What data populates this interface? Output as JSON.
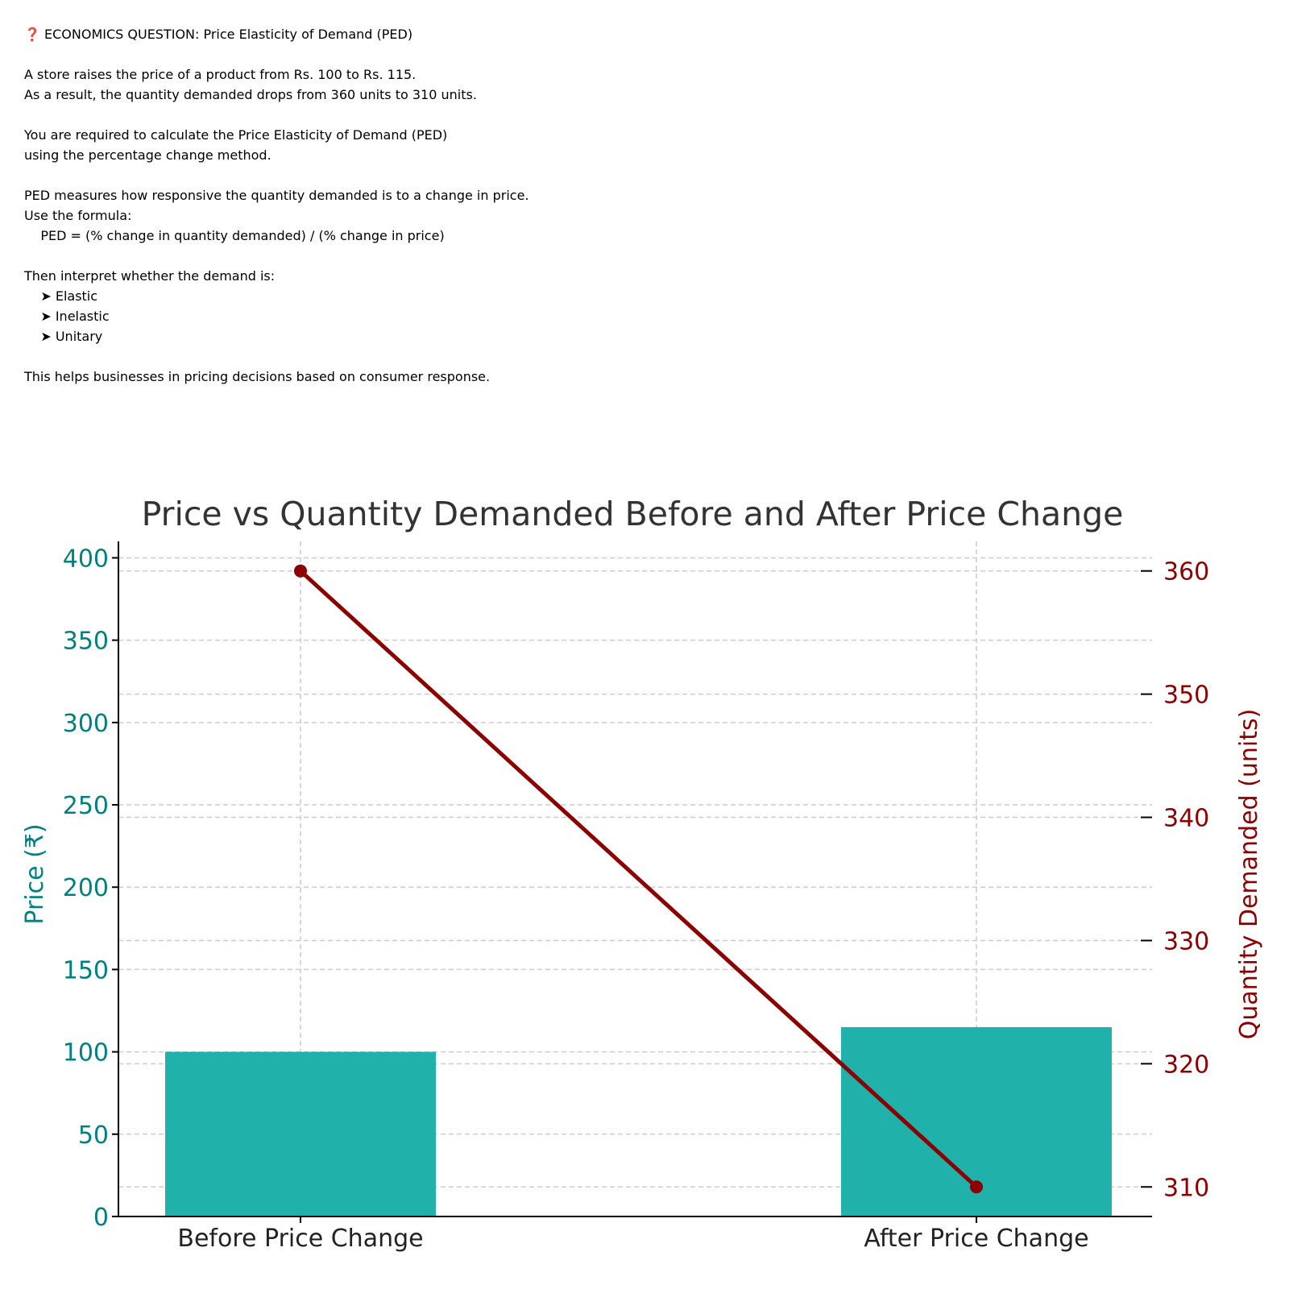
{
  "question": {
    "lines": [
      "❓ ECONOMICS QUESTION: Price Elasticity of Demand (PED)",
      "",
      "A store raises the price of a product from Rs. 100 to Rs. 115.",
      "As a result, the quantity demanded drops from 360 units to 310 units.",
      "",
      "You are required to calculate the Price Elasticity of Demand (PED)",
      "using the percentage change method.",
      "",
      "PED measures how responsive the quantity demanded is to a change in price.",
      "Use the formula:",
      "    PED = (% change in quantity demanded) / (% change in price)",
      "",
      "Then interpret whether the demand is:",
      "    ➤ Elastic",
      "    ➤ Inelastic",
      "    ➤ Unitary",
      "",
      "This helps businesses in pricing decisions based on consumer response."
    ]
  },
  "chart_data": {
    "type": "bar",
    "title": "Price vs Quantity Demanded Before and After Price Change",
    "categories": [
      "Before Price Change",
      "After Price Change"
    ],
    "ylabel": "Price (₹)",
    "ylim": [
      0,
      410
    ],
    "yticks": [
      0,
      50,
      100,
      150,
      200,
      250,
      300,
      350,
      400
    ],
    "y2label": "Quantity Demanded (units)",
    "y2lim": [
      307.6,
      362.4
    ],
    "y2ticks": [
      310,
      320,
      330,
      340,
      350,
      360
    ],
    "grid": true,
    "series": [
      {
        "name": "Price",
        "type": "bar",
        "axis": "left",
        "color": "#20b2aa",
        "values": [
          100,
          115
        ]
      },
      {
        "name": "Quantity Demanded",
        "type": "line",
        "axis": "right",
        "color": "#8b0000",
        "values": [
          360,
          310
        ]
      }
    ],
    "colors": {
      "left_axis": "#008080",
      "right_axis": "#8b0000",
      "title": "#333333",
      "categories": "#222222",
      "grid": "#cccccc"
    }
  }
}
